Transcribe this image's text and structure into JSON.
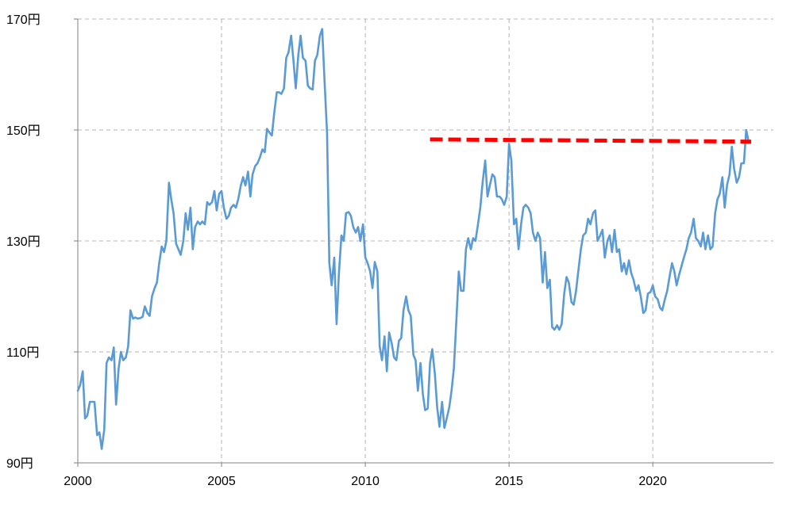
{
  "chart_data": {
    "type": "line",
    "title": "",
    "xlabel": "",
    "ylabel": "",
    "xlim": [
      2000,
      2024
    ],
    "ylim": [
      90,
      170
    ],
    "x_ticks": [
      2000,
      2005,
      2010,
      2015,
      2020
    ],
    "x_tick_labels": [
      "2000",
      "2005",
      "2010",
      "2015",
      "2020"
    ],
    "y_ticks": [
      90,
      110,
      130,
      150,
      170
    ],
    "y_tick_labels": [
      "90円",
      "110円",
      "130円",
      "150円",
      "170円"
    ],
    "grid": true,
    "legend": "none",
    "colors": {
      "series": "#5b9bd5",
      "reference": "#ff0000",
      "grid": "#b5b5b5",
      "axis": "#808080"
    },
    "series": [
      {
        "x": [
          2000.0,
          2000.08,
          2000.17,
          2000.25,
          2000.33,
          2000.42,
          2000.5,
          2000.58,
          2000.67,
          2000.75,
          2000.83,
          2000.92,
          2001.0,
          2001.08,
          2001.17,
          2001.25,
          2001.33,
          2001.42,
          2001.5,
          2001.58,
          2001.67,
          2001.75,
          2001.83,
          2001.92,
          2002.0,
          2002.08,
          2002.17,
          2002.25,
          2002.33,
          2002.42,
          2002.5,
          2002.58,
          2002.67,
          2002.75,
          2002.83,
          2002.92,
          2003.0,
          2003.08,
          2003.17,
          2003.25,
          2003.33,
          2003.42,
          2003.5,
          2003.58,
          2003.67,
          2003.75,
          2003.83,
          2003.92,
          2004.0,
          2004.08,
          2004.17,
          2004.25,
          2004.33,
          2004.42,
          2004.5,
          2004.58,
          2004.67,
          2004.75,
          2004.83,
          2004.92,
          2005.0,
          2005.08,
          2005.17,
          2005.25,
          2005.33,
          2005.42,
          2005.5,
          2005.58,
          2005.67,
          2005.75,
          2005.83,
          2005.92,
          2006.0,
          2006.08,
          2006.17,
          2006.25,
          2006.33,
          2006.42,
          2006.5,
          2006.58,
          2006.67,
          2006.75,
          2006.83,
          2006.92,
          2007.0,
          2007.08,
          2007.17,
          2007.25,
          2007.33,
          2007.42,
          2007.5,
          2007.58,
          2007.67,
          2007.75,
          2007.83,
          2007.92,
          2008.0,
          2008.08,
          2008.17,
          2008.25,
          2008.33,
          2008.42,
          2008.5,
          2008.58,
          2008.67,
          2008.75,
          2008.83,
          2008.92,
          2009.0,
          2009.08,
          2009.17,
          2009.25,
          2009.33,
          2009.42,
          2009.5,
          2009.58,
          2009.67,
          2009.75,
          2009.83,
          2009.92,
          2010.0,
          2010.08,
          2010.17,
          2010.25,
          2010.33,
          2010.42,
          2010.5,
          2010.58,
          2010.67,
          2010.75,
          2010.83,
          2010.92,
          2011.0,
          2011.08,
          2011.17,
          2011.25,
          2011.33,
          2011.42,
          2011.5,
          2011.58,
          2011.67,
          2011.75,
          2011.83,
          2011.92,
          2012.0,
          2012.08,
          2012.17,
          2012.25,
          2012.33,
          2012.42,
          2012.5,
          2012.58,
          2012.67,
          2012.75,
          2012.83,
          2012.92,
          2013.0,
          2013.08,
          2013.17,
          2013.25,
          2013.33,
          2013.42,
          2013.5,
          2013.58,
          2013.67,
          2013.75,
          2013.83,
          2013.92,
          2014.0,
          2014.08,
          2014.17,
          2014.25,
          2014.33,
          2014.42,
          2014.5,
          2014.58,
          2014.67,
          2014.75,
          2014.83,
          2014.92,
          2015.0,
          2015.08,
          2015.17,
          2015.25,
          2015.33,
          2015.42,
          2015.5,
          2015.58,
          2015.67,
          2015.75,
          2015.83,
          2015.92,
          2016.0,
          2016.08,
          2016.17,
          2016.25,
          2016.33,
          2016.42,
          2016.5,
          2016.58,
          2016.67,
          2016.75,
          2016.83,
          2016.92,
          2017.0,
          2017.08,
          2017.17,
          2017.25,
          2017.33,
          2017.42,
          2017.5,
          2017.58,
          2017.67,
          2017.75,
          2017.83,
          2017.92,
          2018.0,
          2018.08,
          2018.17,
          2018.25,
          2018.33,
          2018.42,
          2018.5,
          2018.58,
          2018.67,
          2018.75,
          2018.83,
          2018.92,
          2019.0,
          2019.08,
          2019.17,
          2019.25,
          2019.33,
          2019.42,
          2019.5,
          2019.58,
          2019.67,
          2019.75,
          2019.83,
          2019.92,
          2020.0,
          2020.08,
          2020.17,
          2020.25,
          2020.33,
          2020.42,
          2020.5,
          2020.58,
          2020.67,
          2020.75,
          2020.83,
          2020.92,
          2021.0,
          2021.08,
          2021.17,
          2021.25,
          2021.33,
          2021.42,
          2021.5,
          2021.58,
          2021.67,
          2021.75,
          2021.83,
          2021.92,
          2022.0,
          2022.08,
          2022.17,
          2022.25,
          2022.33,
          2022.42,
          2022.5,
          2022.58,
          2022.67,
          2022.75,
          2022.83,
          2022.92,
          2023.0,
          2023.08,
          2023.17,
          2023.25,
          2023.33
        ],
        "values": [
          103,
          104,
          106.5,
          98,
          98.5,
          101,
          101,
          101,
          95,
          95.5,
          92.5,
          96,
          108,
          109,
          108.5,
          110.8,
          100.5,
          107,
          110,
          108.5,
          109,
          111,
          117.5,
          116,
          116.2,
          116,
          116.1,
          116.3,
          118.2,
          117,
          116.5,
          120,
          121.5,
          122.5,
          126,
          129,
          128,
          130,
          140.5,
          137.5,
          135,
          129.5,
          128.5,
          127.5,
          130,
          135,
          132,
          136,
          128.5,
          132.5,
          133.5,
          133,
          133.5,
          133,
          137,
          136.5,
          137,
          139,
          135.5,
          138.5,
          139,
          136,
          134,
          134.5,
          136,
          136.5,
          136,
          137.5,
          140,
          141.5,
          140,
          142.5,
          138,
          142,
          143.5,
          144,
          145,
          146.5,
          146,
          150.2,
          149.5,
          149,
          153,
          156.8,
          156.8,
          156.5,
          157.5,
          163,
          164,
          167,
          162.5,
          157.5,
          163.5,
          167,
          163,
          162.5,
          158,
          157.5,
          157.3,
          162.5,
          163.5,
          167,
          168.2,
          159,
          149.5,
          126,
          122,
          127,
          115,
          124,
          131,
          130,
          135,
          135.2,
          134.5,
          132.5,
          131.5,
          132.5,
          130,
          133,
          127,
          126,
          124.5,
          121.5,
          126.2,
          124.5,
          111,
          108.5,
          112.8,
          106.5,
          113.5,
          111.5,
          109,
          108.5,
          112,
          112.5,
          117.5,
          120,
          117.5,
          116.5,
          109.5,
          108.5,
          103,
          108,
          102.5,
          99.5,
          99.8,
          108,
          110.5,
          106,
          100,
          96.5,
          101,
          96.3,
          98,
          100,
          103,
          107,
          116,
          124.5,
          121,
          121,
          128.5,
          130.5,
          128.5,
          130.5,
          130,
          133,
          136,
          140.5,
          144.5,
          138,
          140,
          142,
          141.5,
          138,
          138,
          137.5,
          136.5,
          138,
          147.5,
          144.5,
          133,
          134,
          128.5,
          133,
          136,
          136.5,
          136,
          135,
          131.5,
          130,
          131.5,
          130.5,
          122.5,
          128,
          121.5,
          123,
          114.5,
          114,
          114.8,
          114,
          115,
          120.5,
          123.5,
          122.5,
          119,
          118.5,
          121,
          125,
          128.5,
          131,
          131.5,
          134,
          133,
          135,
          135.5,
          130,
          131,
          132,
          127,
          130,
          131,
          128,
          132,
          128,
          128.5,
          124.5,
          126,
          124,
          126.5,
          124.2,
          123,
          121,
          122,
          120,
          117,
          117.5,
          120.5,
          120.8,
          122,
          120,
          119.5,
          118,
          117.5,
          119.5,
          121,
          123.5,
          126,
          124.5,
          122,
          124,
          125.5,
          127,
          128.5,
          130.5,
          131.5,
          134,
          130.5,
          130,
          129,
          131.5,
          128.5,
          131,
          128.5,
          129,
          135,
          137.5,
          138.5,
          141.5,
          136,
          140,
          142,
          147,
          143,
          140.5,
          141.5,
          144,
          144,
          150,
          148
        ]
      },
      {
        "x": [
          2012.25,
          2023.42
        ],
        "values": [
          148.3,
          147.9
        ]
      }
    ]
  }
}
